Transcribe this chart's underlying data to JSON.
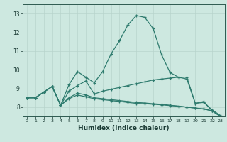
{
  "xlabel": "Humidex (Indice chaleur)",
  "xlim": [
    -0.5,
    23.5
  ],
  "ylim": [
    7.5,
    13.5
  ],
  "yticks": [
    8,
    9,
    10,
    11,
    12,
    13
  ],
  "xticks": [
    0,
    1,
    2,
    3,
    4,
    5,
    6,
    7,
    8,
    9,
    10,
    11,
    12,
    13,
    14,
    15,
    16,
    17,
    18,
    19,
    20,
    21,
    22,
    23
  ],
  "bg_color": "#cde8e0",
  "grid_color": "#b8d4cc",
  "line_color": "#2e7b6e",
  "lines": [
    [
      8.5,
      8.5,
      8.8,
      9.1,
      8.1,
      9.2,
      9.9,
      9.6,
      9.3,
      9.9,
      10.85,
      11.55,
      12.4,
      12.9,
      12.8,
      12.2,
      10.8,
      9.85,
      9.6,
      9.5,
      8.2,
      8.3,
      7.8,
      7.5
    ],
    [
      8.5,
      8.5,
      8.8,
      9.1,
      8.1,
      8.85,
      9.15,
      9.4,
      8.7,
      8.85,
      8.95,
      9.05,
      9.15,
      9.25,
      9.35,
      9.45,
      9.5,
      9.55,
      9.6,
      9.6,
      8.2,
      8.25,
      7.85,
      7.55
    ],
    [
      8.5,
      8.5,
      8.8,
      9.1,
      8.1,
      8.5,
      8.75,
      8.65,
      8.5,
      8.45,
      8.4,
      8.35,
      8.3,
      8.25,
      8.22,
      8.18,
      8.15,
      8.1,
      8.05,
      8.0,
      7.95,
      7.9,
      7.8,
      7.5
    ],
    [
      8.5,
      8.5,
      8.8,
      9.1,
      8.1,
      8.45,
      8.65,
      8.55,
      8.45,
      8.4,
      8.35,
      8.3,
      8.25,
      8.2,
      8.18,
      8.15,
      8.12,
      8.08,
      8.05,
      8.0,
      7.95,
      7.9,
      7.8,
      7.5
    ]
  ]
}
